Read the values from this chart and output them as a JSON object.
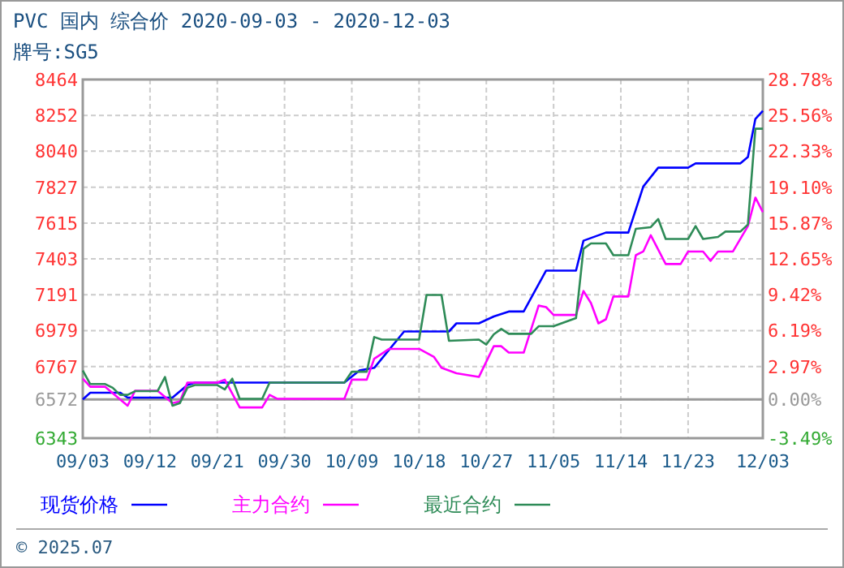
{
  "chart_data": {
    "type": "line",
    "title": "PVC 国内 综合价 2020-09-03 - 2020-12-03",
    "subtitle": "牌号:SG5",
    "annotations": [
      "© 2025.07"
    ],
    "xlim": [
      "2020-09-03",
      "2020-12-03"
    ],
    "xticks": [
      {
        "value": "2020-09-03",
        "label": "09/03"
      },
      {
        "value": "2020-09-12",
        "label": "09/12"
      },
      {
        "value": "2020-09-21",
        "label": "09/21"
      },
      {
        "value": "2020-09-30",
        "label": "09/30"
      },
      {
        "value": "2020-10-09",
        "label": "10/09"
      },
      {
        "value": "2020-10-18",
        "label": "10/18"
      },
      {
        "value": "2020-10-27",
        "label": "10/27"
      },
      {
        "value": "2020-11-05",
        "label": "11/05"
      },
      {
        "value": "2020-11-14",
        "label": "11/14"
      },
      {
        "value": "2020-11-23",
        "label": "11/23"
      },
      {
        "value": "2020-12-03",
        "label": "12/03"
      }
    ],
    "ylim": [
      6343,
      8464
    ],
    "yticks": [
      6343,
      6572,
      6767,
      6979,
      7191,
      7403,
      7615,
      7827,
      8040,
      8252,
      8464
    ],
    "y2lim": [
      -3.49,
      28.78
    ],
    "y2ticks": [
      {
        "value": -3.49,
        "label": "-3.49%"
      },
      {
        "value": 0,
        "label": "0.00%"
      },
      {
        "value": 2.97,
        "label": "2.97%"
      },
      {
        "value": 6.19,
        "label": "6.19%"
      },
      {
        "value": 9.42,
        "label": "9.42%"
      },
      {
        "value": 12.65,
        "label": "12.65%"
      },
      {
        "value": 15.87,
        "label": "15.87%"
      },
      {
        "value": 19.1,
        "label": "19.10%"
      },
      {
        "value": 22.33,
        "label": "22.33%"
      },
      {
        "value": 25.56,
        "label": "25.56%"
      },
      {
        "value": 28.78,
        "label": "28.78%"
      }
    ],
    "ref_lines": [
      {
        "axis": "y2",
        "value": 0,
        "color": "#999999"
      }
    ],
    "grid": true,
    "legend": "bottom",
    "marker": "none",
    "line_style": "solid",
    "series": [
      {
        "name": "现货价格",
        "color": "#0000ff",
        "x": [
          "2020-09-03",
          "2020-09-04",
          "2020-09-08",
          "2020-09-09",
          "2020-09-15",
          "2020-09-17",
          "2020-09-18",
          "2020-10-08",
          "2020-10-10",
          "2020-10-12",
          "2020-10-16",
          "2020-10-22",
          "2020-10-23",
          "2020-10-26",
          "2020-10-28",
          "2020-10-30",
          "2020-11-01",
          "2020-11-04",
          "2020-11-08",
          "2020-11-09",
          "2020-11-12",
          "2020-11-15",
          "2020-11-17",
          "2020-11-19",
          "2020-11-23",
          "2020-11-24",
          "2020-11-30",
          "2020-12-01",
          "2020-12-02",
          "2020-12-03"
        ],
        "values": [
          6572,
          6612,
          6612,
          6583,
          6583,
          6657,
          6672,
          6672,
          6743,
          6759,
          6974,
          6974,
          7022,
          7022,
          7063,
          7092,
          7092,
          7334,
          7334,
          7511,
          7559,
          7559,
          7831,
          7943,
          7943,
          7968,
          7968,
          8006,
          8231,
          8279
        ]
      },
      {
        "name": "主力合约",
        "color": "#ff00ff",
        "x": [
          "2020-09-03",
          "2020-09-04",
          "2020-09-06",
          "2020-09-09",
          "2020-09-10",
          "2020-09-13",
          "2020-09-15",
          "2020-09-16",
          "2020-09-17",
          "2020-09-21",
          "2020-09-22",
          "2020-09-24",
          "2020-09-27",
          "2020-09-28",
          "2020-09-29",
          "2020-10-08",
          "2020-10-09",
          "2020-10-11",
          "2020-10-12",
          "2020-10-14",
          "2020-10-18",
          "2020-10-20",
          "2020-10-21",
          "2020-10-23",
          "2020-10-26",
          "2020-10-28",
          "2020-10-29",
          "2020-10-30",
          "2020-11-01",
          "2020-11-03",
          "2020-11-04",
          "2020-11-05",
          "2020-11-08",
          "2020-11-09",
          "2020-11-10",
          "2020-11-11",
          "2020-11-12",
          "2020-11-13",
          "2020-11-15",
          "2020-11-16",
          "2020-11-17",
          "2020-11-18",
          "2020-11-20",
          "2020-11-22",
          "2020-11-23",
          "2020-11-25",
          "2020-11-26",
          "2020-11-27",
          "2020-11-29",
          "2020-12-01",
          "2020-12-02",
          "2020-12-03"
        ],
        "values": [
          6695,
          6647,
          6647,
          6535,
          6624,
          6624,
          6551,
          6560,
          6672,
          6672,
          6689,
          6525,
          6525,
          6599,
          6576,
          6576,
          6689,
          6689,
          6813,
          6871,
          6871,
          6823,
          6759,
          6727,
          6705,
          6887,
          6887,
          6849,
          6849,
          7127,
          7118,
          7072,
          7072,
          7213,
          7142,
          7022,
          7046,
          7181,
          7181,
          7425,
          7447,
          7543,
          7373,
          7373,
          7447,
          7447,
          7392,
          7447,
          7447,
          7597,
          7766,
          7680
        ]
      },
      {
        "name": "最近合约",
        "color": "#2e8b57",
        "x": [
          "2020-09-03",
          "2020-09-04",
          "2020-09-06",
          "2020-09-07",
          "2020-09-08",
          "2020-09-09",
          "2020-09-10",
          "2020-09-13",
          "2020-09-14",
          "2020-09-15",
          "2020-09-16",
          "2020-09-17",
          "2020-09-18",
          "2020-09-21",
          "2020-09-22",
          "2020-09-23",
          "2020-09-24",
          "2020-09-27",
          "2020-09-28",
          "2020-10-08",
          "2020-10-09",
          "2020-10-11",
          "2020-10-12",
          "2020-10-13",
          "2020-10-18",
          "2020-10-19",
          "2020-10-21",
          "2020-10-22",
          "2020-10-26",
          "2020-10-27",
          "2020-10-28",
          "2020-10-29",
          "2020-10-30",
          "2020-11-02",
          "2020-11-03",
          "2020-11-05",
          "2020-11-08",
          "2020-11-09",
          "2020-11-10",
          "2020-11-12",
          "2020-11-13",
          "2020-11-15",
          "2020-11-16",
          "2020-11-18",
          "2020-11-19",
          "2020-11-20",
          "2020-11-23",
          "2020-11-24",
          "2020-11-25",
          "2020-11-27",
          "2020-11-28",
          "2020-11-30",
          "2020-12-01",
          "2020-12-02",
          "2020-12-03"
        ],
        "values": [
          6743,
          6663,
          6663,
          6641,
          6599,
          6599,
          6621,
          6621,
          6705,
          6535,
          6551,
          6641,
          6657,
          6657,
          6631,
          6695,
          6576,
          6576,
          6672,
          6672,
          6736,
          6736,
          6941,
          6926,
          6926,
          7190,
          7190,
          6919,
          6926,
          6897,
          6957,
          6989,
          6960,
          6960,
          7005,
          7005,
          7053,
          7463,
          7495,
          7495,
          7425,
          7425,
          7581,
          7591,
          7639,
          7521,
          7521,
          7597,
          7521,
          7533,
          7565,
          7565,
          7607,
          8173,
          8173
        ]
      }
    ]
  }
}
